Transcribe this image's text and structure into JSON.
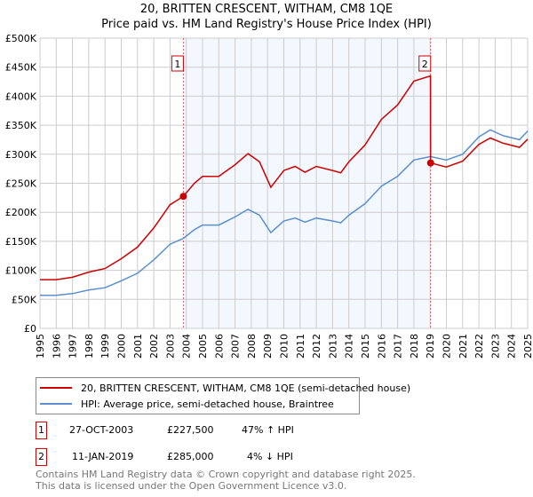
{
  "chart_data": {
    "type": "line",
    "title": "20, BRITTEN CRESCENT, WITHAM, CM8 1QE",
    "subtitle": "Price paid vs. HM Land Registry's House Price Index (HPI)",
    "xlim": [
      1995,
      2025
    ],
    "ylim": [
      0,
      500000
    ],
    "grid": true,
    "x_ticks": [
      "1995",
      "1996",
      "1997",
      "1998",
      "1999",
      "2000",
      "2001",
      "2002",
      "2003",
      "2004",
      "2005",
      "2006",
      "2007",
      "2008",
      "2009",
      "2010",
      "2011",
      "2012",
      "2013",
      "2014",
      "2015",
      "2016",
      "2017",
      "2018",
      "2019",
      "2020",
      "2021",
      "2022",
      "2023",
      "2024",
      "2025"
    ],
    "y_ticks": [
      {
        "v": 0,
        "label": "£0"
      },
      {
        "v": 50000,
        "label": "£50K"
      },
      {
        "v": 100000,
        "label": "£100K"
      },
      {
        "v": 150000,
        "label": "£150K"
      },
      {
        "v": 200000,
        "label": "£200K"
      },
      {
        "v": 250000,
        "label": "£250K"
      },
      {
        "v": 300000,
        "label": "£300K"
      },
      {
        "v": 350000,
        "label": "£350K"
      },
      {
        "v": 400000,
        "label": "£400K"
      },
      {
        "v": 450000,
        "label": "£450K"
      },
      {
        "v": 500000,
        "label": "£500K"
      }
    ],
    "shaded_range": [
      2003.82,
      2019.03
    ],
    "series": [
      {
        "name": "20, BRITTEN CRESCENT, WITHAM, CM8 1QE (semi-detached house)",
        "color": "#cc0000",
        "x": [
          1995,
          1996,
          1997,
          1998,
          1999,
          2000,
          2001,
          2002,
          2003,
          2003.82,
          2004.5,
          2005,
          2006,
          2007,
          2007.8,
          2008.5,
          2009.2,
          2010,
          2010.7,
          2011.3,
          2012,
          2013,
          2013.5,
          2014,
          2015,
          2016,
          2017,
          2018,
          2019.02,
          2019.03,
          2020,
          2021,
          2022,
          2022.7,
          2023.5,
          2024.5,
          2025
        ],
        "y": [
          84000,
          84000,
          88000,
          97000,
          103000,
          120000,
          140000,
          173000,
          213000,
          227500,
          250000,
          262000,
          262000,
          282000,
          301000,
          287000,
          243000,
          272000,
          279000,
          269000,
          279000,
          272000,
          268000,
          287000,
          316000,
          360000,
          385000,
          426000,
          435000,
          285000,
          278000,
          288000,
          317000,
          328000,
          319000,
          312000,
          326000
        ]
      },
      {
        "name": "HPI: Average price, semi-detached house, Braintree",
        "color": "#5b8fd0",
        "x": [
          1995,
          1996,
          1997,
          1998,
          1999,
          2000,
          2001,
          2002,
          2003,
          2003.82,
          2004.5,
          2005,
          2006,
          2007,
          2007.8,
          2008.5,
          2009.2,
          2010,
          2010.7,
          2011.3,
          2012,
          2013,
          2013.5,
          2014,
          2015,
          2016,
          2017,
          2018,
          2019.03,
          2020,
          2021,
          2022,
          2022.7,
          2023.5,
          2024.5,
          2025
        ],
        "y": [
          57000,
          57000,
          60000,
          66000,
          70000,
          82000,
          95000,
          118000,
          145000,
          155000,
          170000,
          178000,
          178000,
          192000,
          205000,
          195000,
          165000,
          185000,
          190000,
          183000,
          190000,
          185000,
          182000,
          195000,
          215000,
          245000,
          262000,
          290000,
          296000,
          290000,
          300000,
          330000,
          342000,
          332000,
          325000,
          340000
        ]
      }
    ],
    "markers": [
      {
        "label": "1",
        "x": 2003.82,
        "y": 227500
      },
      {
        "label": "2",
        "x": 2019.03,
        "y": 285000
      }
    ]
  },
  "sales": [
    {
      "num": "1",
      "date": "27-OCT-2003",
      "price": "£227,500",
      "hpi": "47% ↑ HPI"
    },
    {
      "num": "2",
      "date": "11-JAN-2019",
      "price": "£285,000",
      "hpi": "4% ↓ HPI"
    }
  ],
  "footer": {
    "line1": "Contains HM Land Registry data © Crown copyright and database right 2025.",
    "line2": "This data is licensed under the Open Government Licence v3.0."
  }
}
